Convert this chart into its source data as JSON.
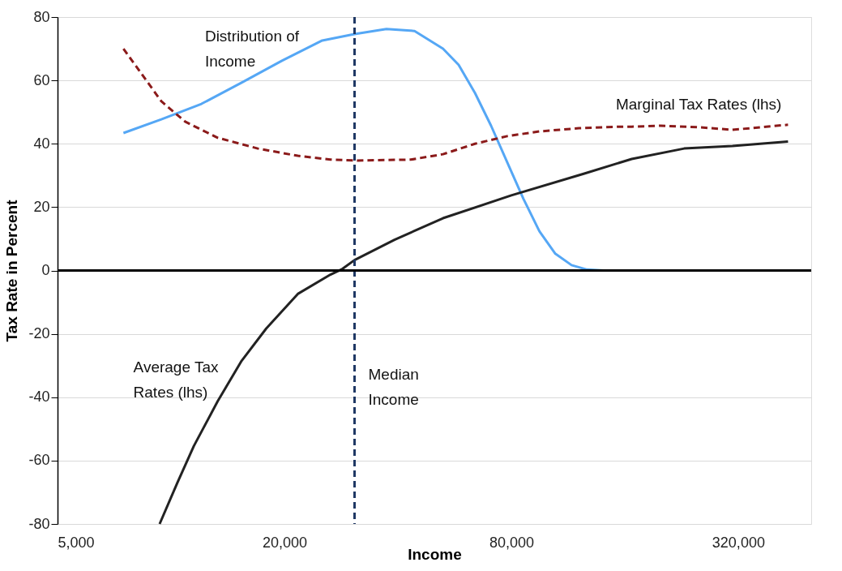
{
  "chart_data": {
    "type": "line",
    "xlabel": "Income",
    "ylabel": "Tax Rate in Percent",
    "log": "x",
    "xlim": [
      5000,
      500000
    ],
    "xticks": [
      {
        "value": 5000,
        "label": "5,000"
      },
      {
        "value": 20000,
        "label": "20,000"
      },
      {
        "value": 80000,
        "label": "80,000"
      },
      {
        "value": 320000,
        "label": "320,000"
      }
    ],
    "ylim": [
      -80,
      80
    ],
    "yticks": [
      -80,
      -60,
      -40,
      -20,
      0,
      20,
      40,
      60,
      80
    ],
    "grid": "y",
    "marker": "none",
    "series": [
      {
        "name": "Distribution of Income",
        "color": "#55a7f5",
        "line_style": "solid",
        "x": [
          7480,
          9430,
          12050,
          15400,
          19700,
          25200,
          30700,
          37300,
          44300,
          52700,
          58000,
          64100,
          70700,
          78000,
          86100,
          95000,
          104700,
          115600,
          127000,
          140600,
          434000
        ],
        "values": [
          43.4,
          47.7,
          52.6,
          59.3,
          66.2,
          72.6,
          74.6,
          76.2,
          75.6,
          70,
          64.9,
          56,
          45.7,
          34.2,
          22.7,
          12.4,
          5.3,
          1.7,
          0.3,
          0,
          0
        ]
      },
      {
        "name": "Marginal Tax Rates (lhs)",
        "color": "#8b1a1a",
        "line_style": "dashed",
        "x": [
          7480,
          9430,
          10900,
          13300,
          17000,
          21700,
          26500,
          30700,
          43300,
          52700,
          64100,
          78000,
          95000,
          121000,
          155000,
          167000,
          199000,
          254000,
          309000,
          434000
        ],
        "values": [
          70,
          53.4,
          47,
          41.9,
          38.5,
          36.2,
          35,
          34.7,
          35,
          36.7,
          40,
          42.4,
          43.9,
          44.9,
          45.4,
          45.4,
          45.7,
          45.2,
          44.4,
          46
        ]
      },
      {
        "name": "Average Tax Rates (lhs)",
        "color": "#222222",
        "line_style": "solid",
        "x": [
          9330,
          10400,
          11500,
          13300,
          15400,
          17900,
          21700,
          26500,
          28500,
          30700,
          39200,
          52700,
          80000,
          125000,
          167000,
          230000,
          309000,
          434000
        ],
        "values": [
          -80,
          -67,
          -55.4,
          -41.3,
          -28.5,
          -18.3,
          -7.4,
          -1.3,
          0.5,
          3.3,
          9.7,
          16.5,
          23.7,
          30.6,
          35.2,
          38.5,
          39.3,
          40.7
        ]
      }
    ],
    "ref_lines": [
      {
        "axis": "x",
        "value": 30700,
        "label": "Median Income",
        "color": "#1f3864",
        "line_style": "dashed"
      },
      {
        "axis": "y",
        "value": 0,
        "color": "#000000",
        "line_style": "solid"
      }
    ]
  }
}
